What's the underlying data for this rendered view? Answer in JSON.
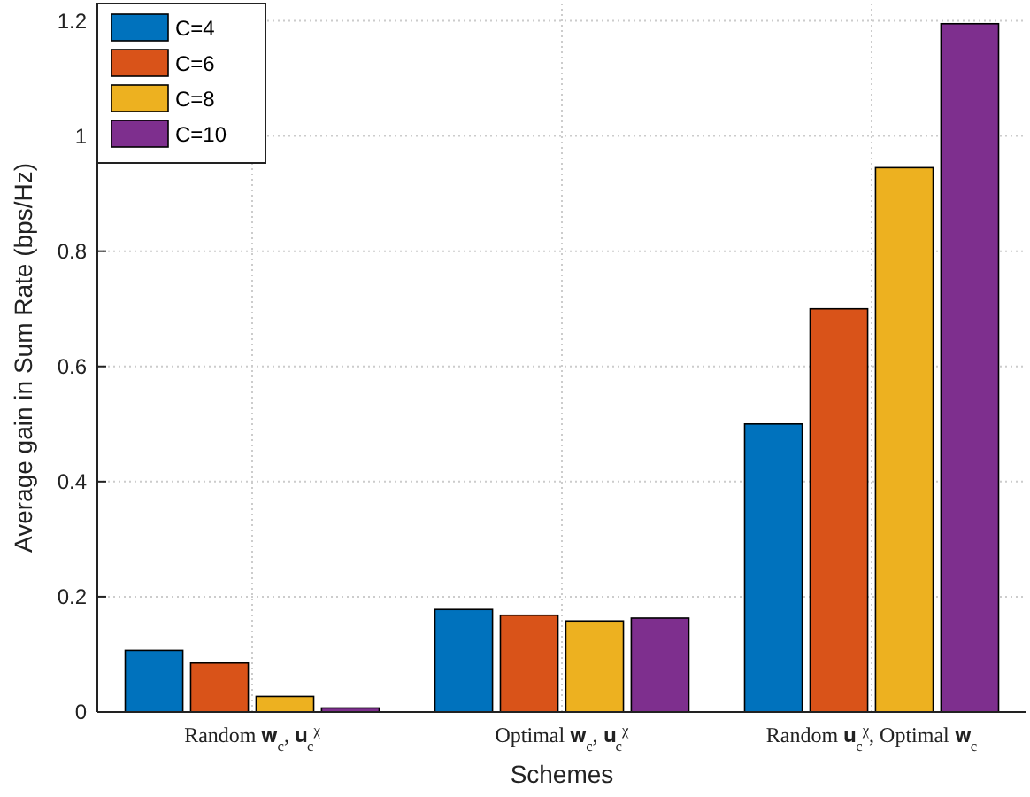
{
  "chart_data": {
    "type": "bar",
    "xlabel": "Schemes",
    "ylabel": "Average gain in Sum Rate (bps/Hz)",
    "categories": [
      "Random 𝐰$_{c}$, 𝐮$_{c}$$^{χ}$",
      "Optimal 𝐰$_{c}$, 𝐮$_{c}$$^{χ}$",
      "Random 𝐮$_{c}$$^{χ}$, Optimal 𝐰$_{c}$"
    ],
    "series": [
      {
        "name": "C=4",
        "color": "#0072bd",
        "values": [
          0.107,
          0.178,
          0.5
        ]
      },
      {
        "name": "C=6",
        "color": "#d95319",
        "values": [
          0.085,
          0.168,
          0.7
        ]
      },
      {
        "name": "C=8",
        "color": "#edb120",
        "values": [
          0.027,
          0.158,
          0.945
        ]
      },
      {
        "name": "C=10",
        "color": "#7e2f8e",
        "values": [
          0.007,
          0.163,
          1.195
        ]
      }
    ],
    "ylim": [
      0,
      1.23
    ],
    "yticks": [
      0,
      0.2,
      0.4,
      0.6,
      0.8,
      1,
      1.2
    ],
    "grid": true,
    "legend": "top left"
  }
}
